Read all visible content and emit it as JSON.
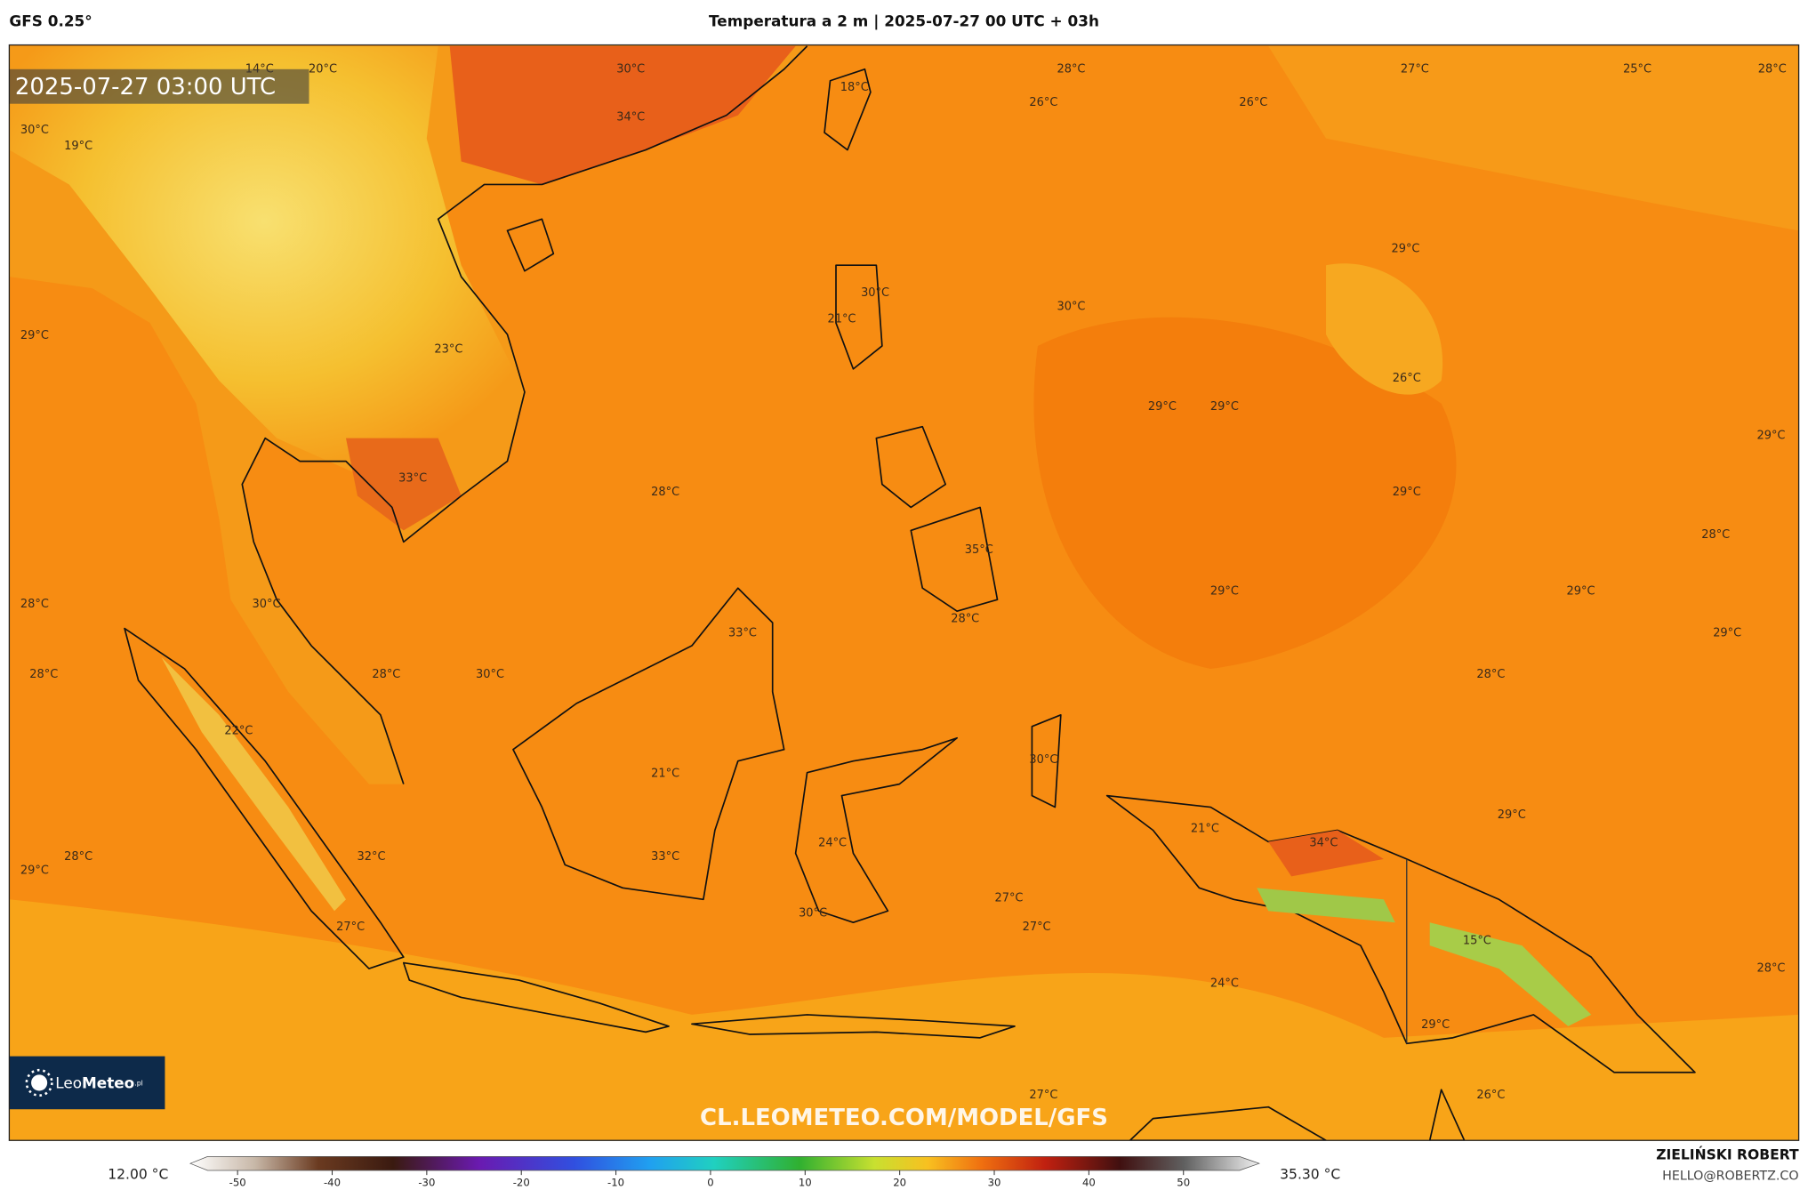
{
  "header": {
    "model": "GFS 0.25°",
    "title": "Temperatura a 2 m | 2025-07-27 00 UTC + 03h"
  },
  "map": {
    "timestamp": "2025-07-27 03:00 UTC",
    "labels": [
      "14°C",
      "20°C",
      "30°C",
      "18°C",
      "28°C",
      "26°C",
      "26°C",
      "27°C",
      "25°C",
      "28°C",
      "30°C",
      "19°C",
      "34°C",
      "29°C",
      "30°C",
      "21°C",
      "30°C",
      "29°C",
      "23°C",
      "26°C",
      "29°C",
      "29°C",
      "29°C",
      "33°C",
      "28°C",
      "29°C",
      "35°C",
      "28°C",
      "28°C",
      "30°C",
      "29°C",
      "29°C",
      "28°C",
      "33°C",
      "29°C",
      "28°C",
      "28°C",
      "30°C",
      "28°C",
      "22°C",
      "21°C",
      "30°C",
      "21°C",
      "29°C",
      "34°C",
      "24°C",
      "28°C",
      "29°C",
      "32°C",
      "33°C",
      "27°C",
      "30°C",
      "27°C",
      "27°C",
      "28°C",
      "15°C",
      "24°C",
      "29°C",
      "27°C",
      "26°C"
    ],
    "watermark": "CL.LEOMETEO.COM/MODEL/GFS",
    "logo": [
      "Leo",
      "Meteo",
      ".pl"
    ]
  },
  "colorbar": {
    "min_label": "12.00 °C",
    "max_label": "35.30 °C",
    "range": [
      -55,
      58
    ],
    "ticks": [
      -50,
      -40,
      -30,
      -20,
      -10,
      0,
      10,
      20,
      30,
      40,
      50
    ]
  },
  "footer": {
    "author": "ZIELIŃSKI ROBERT",
    "email": "HELLO@ROBERTZ.CO"
  }
}
